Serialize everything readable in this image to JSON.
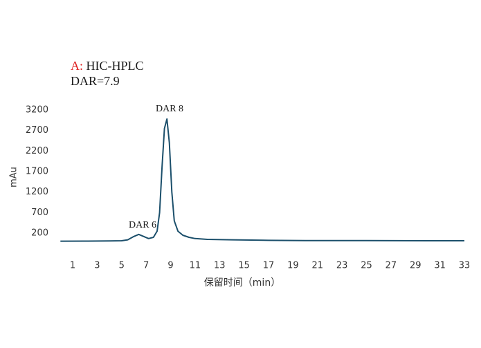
{
  "chart_data": {
    "type": "line",
    "title_prefix": "A:",
    "title": "HIC-HPLC",
    "subtitle": "DAR=7.9",
    "y_label": "mAu",
    "x_label": "保留时间（min）",
    "annotations": [
      "DAR 8",
      "DAR 6"
    ],
    "x": [
      0,
      2,
      4,
      5,
      5.5,
      6,
      6.4,
      6.8,
      7.2,
      7.6,
      7.9,
      8.1,
      8.3,
      8.5,
      8.7,
      8.9,
      9.1,
      9.3,
      9.6,
      10,
      10.5,
      11,
      12,
      14,
      17,
      20,
      25,
      30,
      33
    ],
    "values": [
      5,
      8,
      10,
      15,
      40,
      120,
      170,
      120,
      70,
      100,
      250,
      700,
      1800,
      2750,
      2980,
      2400,
      1200,
      500,
      250,
      150,
      100,
      70,
      50,
      40,
      25,
      20,
      20,
      15,
      15
    ],
    "color": "#1b4f6b",
    "xlim": [
      0,
      33
    ],
    "xticks": [
      1,
      3,
      5,
      7,
      9,
      11,
      13,
      15,
      17,
      19,
      21,
      23,
      25,
      27,
      29,
      31,
      33
    ],
    "ylim": [
      -200,
      3300
    ],
    "yticks": [
      200,
      700,
      1200,
      1700,
      2200,
      2700,
      3200
    ]
  }
}
